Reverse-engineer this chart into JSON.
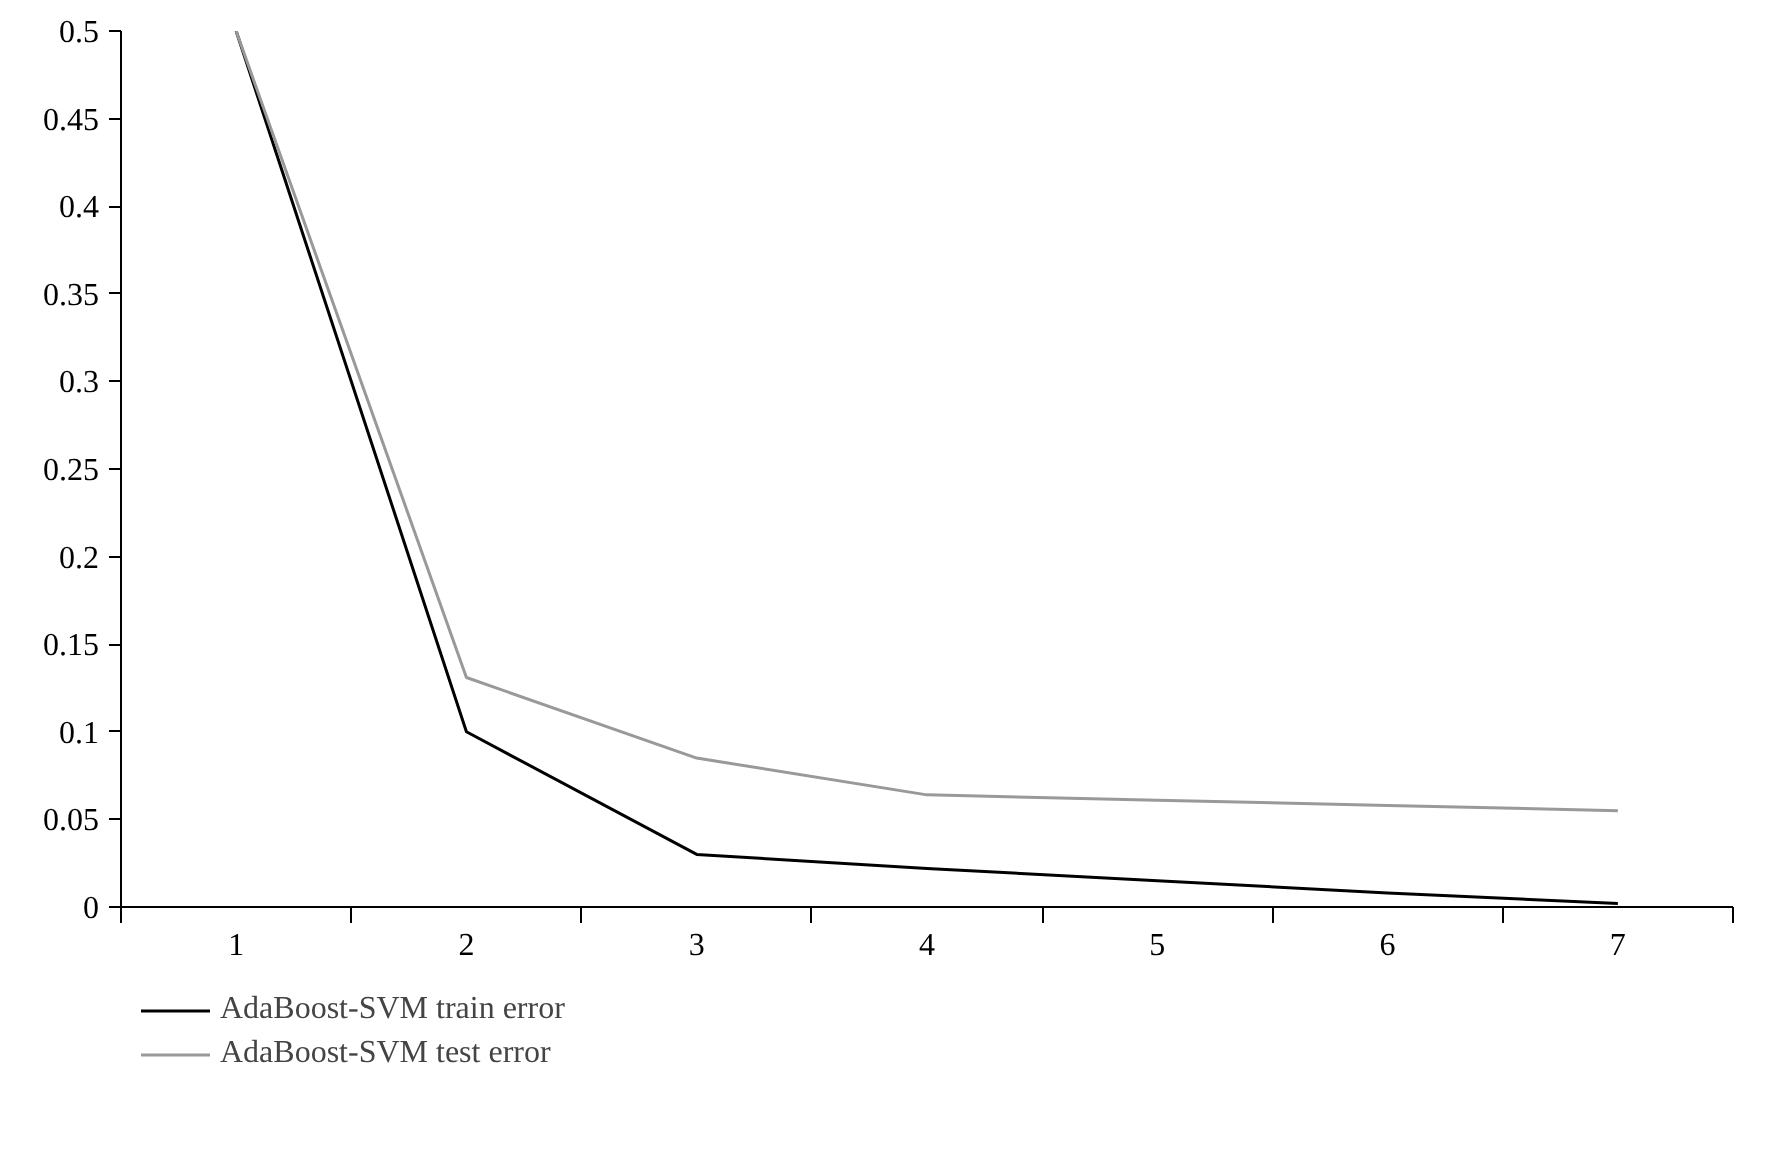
{
  "chart_data": {
    "type": "line",
    "categories": [
      "1",
      "2",
      "3",
      "4",
      "5",
      "6",
      "7"
    ],
    "series": [
      {
        "name": "AdaBoost-SVM train error",
        "color": "#000000",
        "values": [
          0.5,
          0.1,
          0.03,
          0.022,
          0.015,
          0.008,
          0.002
        ]
      },
      {
        "name": "AdaBoost-SVM test error",
        "color": "#999999",
        "values": [
          0.5,
          0.131,
          0.085,
          0.064,
          0.061,
          0.058,
          0.055
        ]
      }
    ],
    "ylim": [
      0,
      0.5
    ],
    "yticks": [
      0,
      0.05,
      0.1,
      0.15,
      0.2,
      0.25,
      0.3,
      0.35,
      0.4,
      0.45,
      0.5
    ],
    "grid": false,
    "legend": "bottom left",
    "marker": "none",
    "line_style": "solid"
  }
}
